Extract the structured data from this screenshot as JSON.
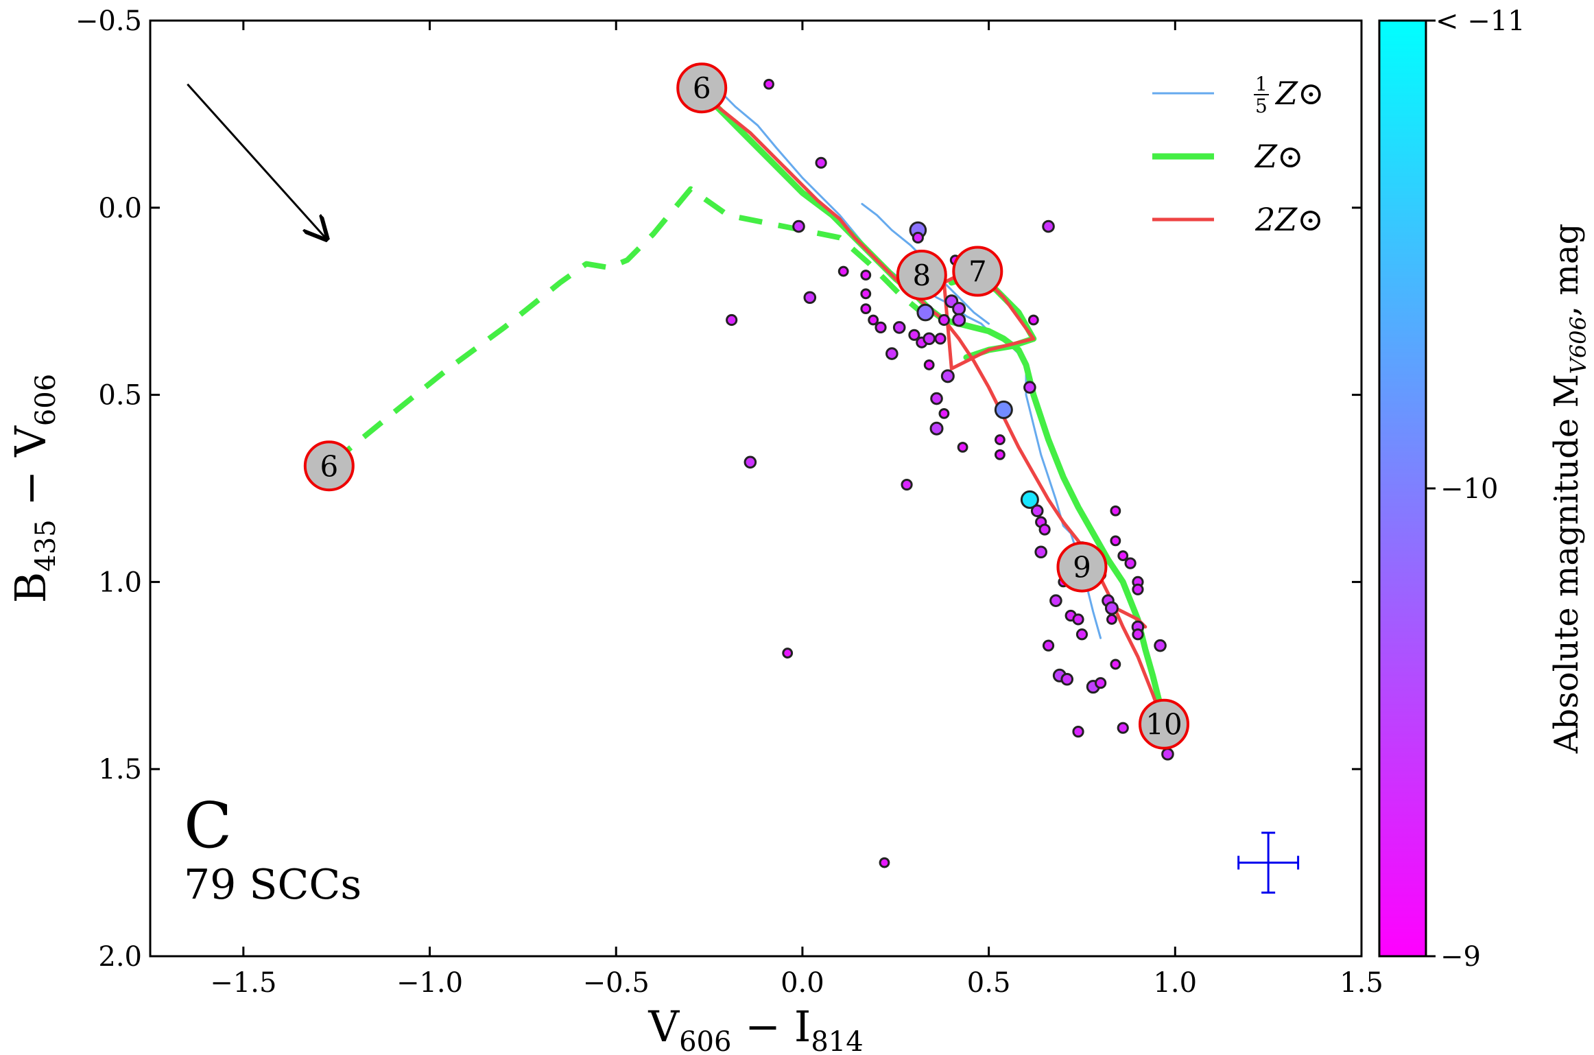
{
  "chart_data": {
    "type": "scatter",
    "panel_letter": "C",
    "count_label": "79 SCCs",
    "xlabel": {
      "main": "V",
      "sub1": "606",
      "mid": " − I",
      "sub2": "814"
    },
    "ylabel": {
      "main": "B",
      "sub1": "435",
      "mid": " − V",
      "sub2": "606"
    },
    "xlim": [
      -1.75,
      1.5
    ],
    "ylim": [
      2.0,
      -0.5
    ],
    "xticks": [
      -1.5,
      -1.0,
      -0.5,
      0.0,
      0.5,
      1.0,
      1.5
    ],
    "xtick_labels": [
      "−1.5",
      "−1.0",
      "−0.5",
      "0.0",
      "0.5",
      "1.0",
      "1.5"
    ],
    "yticks": [
      -0.5,
      0.0,
      0.5,
      1.0,
      1.5,
      2.0
    ],
    "ytick_labels": [
      "−0.5",
      "0.0",
      "0.5",
      "1.0",
      "1.5",
      "2.0"
    ],
    "colorbar": {
      "label": {
        "main": "Absolute magnitude M",
        "sub": "V606",
        "suffix": ", mag"
      },
      "range": [
        -9,
        -11
      ],
      "top_label": "< −11",
      "mid_label": "−10",
      "bottom_label": "−9",
      "color_bright": "#00ffff",
      "color_faint": "#ff00ff"
    },
    "legend": [
      {
        "label_num": "1",
        "label_den": "5",
        "label": "Z⊙",
        "color": "#66aaee",
        "width": 3
      },
      {
        "label": "Z⊙",
        "color": "#44ee44",
        "width": 9
      },
      {
        "label": "2Z⊙",
        "color": "#ee4444",
        "width": 5
      }
    ],
    "series": [
      {
        "name": "1/5 Z⊙ isochrone",
        "color": "#66aaee",
        "width": 3,
        "x": [
          -0.24,
          -0.18,
          -0.12,
          -0.07,
          0.0,
          0.05,
          0.1,
          0.15,
          0.2,
          0.25,
          0.28,
          0.32,
          0.36,
          0.4,
          0.44,
          0.48,
          0.5,
          0.53,
          0.56,
          0.58,
          0.6,
          0.6,
          0.62,
          0.64,
          0.66,
          0.68,
          0.7,
          0.72,
          0.74,
          0.76,
          0.78,
          0.8
        ],
        "y": [
          -0.33,
          -0.27,
          -0.22,
          -0.16,
          -0.08,
          -0.03,
          0.02,
          0.08,
          0.14,
          0.18,
          0.2,
          0.21,
          0.24,
          0.26,
          0.29,
          0.31,
          0.33,
          0.35,
          0.37,
          0.39,
          0.42,
          0.5,
          0.58,
          0.66,
          0.72,
          0.78,
          0.85,
          0.87,
          0.93,
          1.0,
          1.08,
          1.15
        ]
      },
      {
        "name": "1/5 Z⊙ loop",
        "color": "#66aaee",
        "width": 3,
        "x": [
          0.16,
          0.2,
          0.24,
          0.29,
          0.33,
          0.37,
          0.4,
          0.43,
          0.46,
          0.5
        ],
        "y": [
          -0.01,
          0.02,
          0.06,
          0.1,
          0.14,
          0.19,
          0.22,
          0.25,
          0.28,
          0.31
        ]
      },
      {
        "name": "Z⊙ isochrone",
        "color": "#44ee44",
        "width": 9,
        "x": [
          -0.24,
          -0.16,
          -0.08,
          0.0,
          0.08,
          0.14,
          0.2,
          0.25,
          0.3,
          0.34,
          0.38,
          0.42,
          0.46,
          0.5,
          0.54,
          0.58,
          0.6,
          0.62,
          0.66,
          0.7,
          0.74,
          0.78,
          0.82,
          0.86,
          0.88,
          0.9,
          0.92,
          0.94,
          0.96
        ],
        "y": [
          -0.28,
          -0.2,
          -0.12,
          -0.04,
          0.02,
          0.08,
          0.14,
          0.19,
          0.23,
          0.27,
          0.3,
          0.31,
          0.32,
          0.33,
          0.35,
          0.38,
          0.42,
          0.5,
          0.62,
          0.72,
          0.8,
          0.87,
          0.94,
          1.0,
          1.05,
          1.1,
          1.18,
          1.25,
          1.33
        ]
      },
      {
        "name": "Z⊙ loop",
        "color": "#44ee44",
        "width": 9,
        "x": [
          0.4,
          0.46,
          0.52,
          0.58,
          0.62,
          0.56,
          0.5,
          0.44
        ],
        "y": [
          0.2,
          0.18,
          0.22,
          0.28,
          0.35,
          0.37,
          0.38,
          0.4
        ]
      },
      {
        "name": "Z⊙ dashed (young)",
        "color": "#44ee44",
        "width": 8,
        "dash": "34,24",
        "x": [
          -1.26,
          -1.1,
          -0.95,
          -0.8,
          -0.65,
          -0.58,
          -0.52,
          -0.47,
          -0.4,
          -0.3,
          -0.2,
          -0.1,
          0.0,
          0.1,
          0.18,
          0.26,
          0.32,
          0.38
        ],
        "y": [
          0.68,
          0.55,
          0.43,
          0.32,
          0.2,
          0.15,
          0.16,
          0.14,
          0.07,
          -0.05,
          0.02,
          0.04,
          0.06,
          0.08,
          0.15,
          0.23,
          0.28,
          0.3
        ]
      },
      {
        "name": "2Z⊙ isochrone",
        "color": "#ee4444",
        "width": 5,
        "x": [
          -0.24,
          -0.14,
          -0.04,
          0.04,
          0.1,
          0.14,
          0.18,
          0.22,
          0.26,
          0.3,
          0.34,
          0.38,
          0.42,
          0.46,
          0.5,
          0.54,
          0.58,
          0.62,
          0.66,
          0.7,
          0.74,
          0.78,
          0.82,
          0.86,
          0.9,
          0.94,
          0.97
        ],
        "y": [
          -0.28,
          -0.2,
          -0.1,
          -0.02,
          0.03,
          0.08,
          0.12,
          0.16,
          0.2,
          0.23,
          0.27,
          0.3,
          0.35,
          0.41,
          0.48,
          0.56,
          0.64,
          0.71,
          0.78,
          0.84,
          0.89,
          0.95,
          1.03,
          1.12,
          1.2,
          1.3,
          1.38
        ]
      },
      {
        "name": "2Z⊙ loop",
        "color": "#ee4444",
        "width": 5,
        "x": [
          0.38,
          0.46,
          0.54,
          0.62,
          0.5,
          0.4,
          0.38
        ],
        "y": [
          0.2,
          0.16,
          0.24,
          0.35,
          0.38,
          0.43,
          0.2
        ]
      },
      {
        "name": "2Z⊙ tail",
        "color": "#ee4444",
        "width": 5,
        "x": [
          0.82,
          0.86,
          0.9,
          0.92
        ],
        "y": [
          1.06,
          1.08,
          1.1,
          1.12
        ]
      }
    ],
    "age_labels": [
      {
        "label": "6",
        "x": -0.27,
        "y": -0.32
      },
      {
        "label": "6",
        "x": -1.27,
        "y": 0.69
      },
      {
        "label": "8",
        "x": 0.32,
        "y": 0.18
      },
      {
        "label": "7",
        "x": 0.47,
        "y": 0.17
      },
      {
        "label": "9",
        "x": 0.75,
        "y": 0.96
      },
      {
        "label": "10",
        "x": 0.97,
        "y": 1.38
      }
    ],
    "reddening_arrow": {
      "x0": -1.65,
      "y0": -0.33,
      "x1": -1.28,
      "y1": 0.08
    },
    "error_bar": {
      "x": 1.25,
      "y": 1.75,
      "dx": 0.08,
      "dy": 0.08,
      "color": "#0000ee"
    },
    "points": [
      {
        "x": -0.09,
        "y": -0.33,
        "m": -9.2
      },
      {
        "x": 0.05,
        "y": -0.12,
        "m": -9.3
      },
      {
        "x": -0.01,
        "y": 0.05,
        "m": -9.4
      },
      {
        "x": 0.31,
        "y": 0.06,
        "m": -9.9
      },
      {
        "x": 0.31,
        "y": 0.08,
        "m": -9.3
      },
      {
        "x": 0.11,
        "y": 0.17,
        "m": -9.2
      },
      {
        "x": 0.17,
        "y": 0.18,
        "m": -9.2
      },
      {
        "x": 0.02,
        "y": 0.24,
        "m": -9.4
      },
      {
        "x": -0.19,
        "y": 0.3,
        "m": -9.3
      },
      {
        "x": 0.17,
        "y": 0.23,
        "m": -9.2
      },
      {
        "x": 0.17,
        "y": 0.27,
        "m": -9.2
      },
      {
        "x": 0.19,
        "y": 0.3,
        "m": -9.2
      },
      {
        "x": 0.21,
        "y": 0.32,
        "m": -9.3
      },
      {
        "x": 0.26,
        "y": 0.32,
        "m": -9.4
      },
      {
        "x": 0.24,
        "y": 0.39,
        "m": -9.4
      },
      {
        "x": 0.33,
        "y": 0.28,
        "m": -9.9
      },
      {
        "x": 0.3,
        "y": 0.34,
        "m": -9.3
      },
      {
        "x": 0.32,
        "y": 0.36,
        "m": -9.3
      },
      {
        "x": 0.34,
        "y": 0.35,
        "m": -9.4
      },
      {
        "x": 0.4,
        "y": 0.25,
        "m": -9.5
      },
      {
        "x": 0.42,
        "y": 0.27,
        "m": -9.5
      },
      {
        "x": 0.42,
        "y": 0.3,
        "m": -9.5
      },
      {
        "x": 0.38,
        "y": 0.3,
        "m": -9.3
      },
      {
        "x": 0.41,
        "y": 0.14,
        "m": -9.2
      },
      {
        "x": 0.47,
        "y": 0.21,
        "m": -9.5
      },
      {
        "x": 0.37,
        "y": 0.35,
        "m": -9.3
      },
      {
        "x": 0.34,
        "y": 0.42,
        "m": -9.2
      },
      {
        "x": 0.39,
        "y": 0.45,
        "m": -9.5
      },
      {
        "x": 0.36,
        "y": 0.51,
        "m": -9.4
      },
      {
        "x": 0.38,
        "y": 0.55,
        "m": -9.2
      },
      {
        "x": 0.36,
        "y": 0.59,
        "m": -9.5
      },
      {
        "x": 0.43,
        "y": 0.64,
        "m": -9.2
      },
      {
        "x": 0.66,
        "y": 0.05,
        "m": -9.4
      },
      {
        "x": 0.62,
        "y": 0.3,
        "m": -9.2
      },
      {
        "x": 0.54,
        "y": 0.54,
        "m": -10.1
      },
      {
        "x": 0.61,
        "y": 0.48,
        "m": -9.4
      },
      {
        "x": 0.53,
        "y": 0.62,
        "m": -9.2
      },
      {
        "x": 0.53,
        "y": 0.66,
        "m": -9.2
      },
      {
        "x": -0.14,
        "y": 0.68,
        "m": -9.4
      },
      {
        "x": 0.28,
        "y": 0.74,
        "m": -9.3
      },
      {
        "x": 0.61,
        "y": 0.78,
        "m": -10.8
      },
      {
        "x": 0.63,
        "y": 0.81,
        "m": -9.4
      },
      {
        "x": 0.64,
        "y": 0.84,
        "m": -9.3
      },
      {
        "x": 0.65,
        "y": 0.86,
        "m": -9.3
      },
      {
        "x": 0.64,
        "y": 0.92,
        "m": -9.4
      },
      {
        "x": 0.75,
        "y": 0.91,
        "m": -9.5
      },
      {
        "x": 0.74,
        "y": 0.98,
        "m": -9.3
      },
      {
        "x": 0.78,
        "y": 0.97,
        "m": -9.4
      },
      {
        "x": 0.8,
        "y": 0.98,
        "m": -9.3
      },
      {
        "x": 0.84,
        "y": 0.81,
        "m": -9.2
      },
      {
        "x": 0.84,
        "y": 0.89,
        "m": -9.2
      },
      {
        "x": 0.86,
        "y": 0.93,
        "m": -9.2
      },
      {
        "x": 0.88,
        "y": 0.95,
        "m": -9.3
      },
      {
        "x": 0.9,
        "y": 1.0,
        "m": -9.3
      },
      {
        "x": 0.9,
        "y": 1.02,
        "m": -9.3
      },
      {
        "x": 0.68,
        "y": 1.05,
        "m": -9.4
      },
      {
        "x": 0.72,
        "y": 1.09,
        "m": -9.3
      },
      {
        "x": 0.74,
        "y": 1.1,
        "m": -9.3
      },
      {
        "x": 0.75,
        "y": 1.14,
        "m": -9.3
      },
      {
        "x": 0.82,
        "y": 1.05,
        "m": -9.4
      },
      {
        "x": 0.83,
        "y": 1.07,
        "m": -9.5
      },
      {
        "x": 0.9,
        "y": 1.12,
        "m": -9.4
      },
      {
        "x": 0.9,
        "y": 1.14,
        "m": -9.3
      },
      {
        "x": 0.66,
        "y": 1.17,
        "m": -9.3
      },
      {
        "x": 0.96,
        "y": 1.17,
        "m": -9.4
      },
      {
        "x": 0.84,
        "y": 1.22,
        "m": -9.2
      },
      {
        "x": 0.69,
        "y": 1.25,
        "m": -9.5
      },
      {
        "x": 0.71,
        "y": 1.26,
        "m": -9.4
      },
      {
        "x": 0.78,
        "y": 1.28,
        "m": -9.5
      },
      {
        "x": 0.8,
        "y": 1.27,
        "m": -9.3
      },
      {
        "x": 0.74,
        "y": 1.4,
        "m": -9.3
      },
      {
        "x": 0.86,
        "y": 1.39,
        "m": -9.3
      },
      {
        "x": 0.99,
        "y": 1.42,
        "m": -9.3
      },
      {
        "x": 0.98,
        "y": 1.46,
        "m": -9.4
      },
      {
        "x": -0.04,
        "y": 1.19,
        "m": -9.2
      },
      {
        "x": 0.22,
        "y": 1.75,
        "m": -9.2
      },
      {
        "x": 0.83,
        "y": 1.1,
        "m": -9.2
      },
      {
        "x": 0.77,
        "y": 1.0,
        "m": -9.3
      },
      {
        "x": 0.7,
        "y": 1.0,
        "m": -9.2
      }
    ]
  }
}
